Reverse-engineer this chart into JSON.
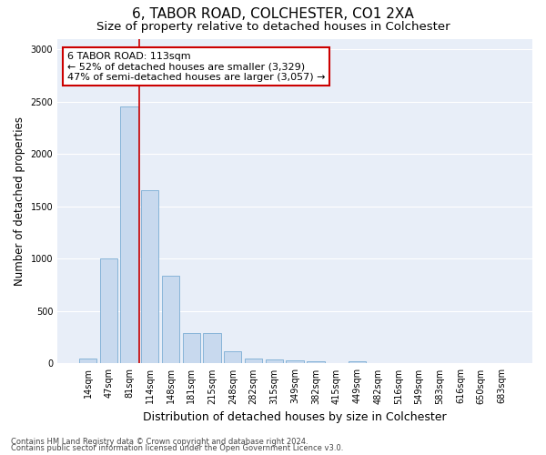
{
  "title": "6, TABOR ROAD, COLCHESTER, CO1 2XA",
  "subtitle": "Size of property relative to detached houses in Colchester",
  "xlabel": "Distribution of detached houses by size in Colchester",
  "ylabel": "Number of detached properties",
  "categories": [
    "14sqm",
    "47sqm",
    "81sqm",
    "114sqm",
    "148sqm",
    "181sqm",
    "215sqm",
    "248sqm",
    "282sqm",
    "315sqm",
    "349sqm",
    "382sqm",
    "415sqm",
    "449sqm",
    "482sqm",
    "516sqm",
    "549sqm",
    "583sqm",
    "616sqm",
    "650sqm",
    "683sqm"
  ],
  "values": [
    50,
    1000,
    2450,
    1650,
    840,
    290,
    290,
    120,
    50,
    40,
    30,
    20,
    0,
    25,
    0,
    0,
    0,
    0,
    0,
    0,
    0
  ],
  "bar_color": "#c8d9ee",
  "bar_edge_color": "#7aadd4",
  "annotation_line1": "6 TABOR ROAD: 113sqm",
  "annotation_line2": "← 52% of detached houses are smaller (3,329)",
  "annotation_line3": "47% of semi-detached houses are larger (3,057) →",
  "annotation_box_color": "#ffffff",
  "annotation_box_edge_color": "#cc0000",
  "vline_color": "#cc0000",
  "ylim": [
    0,
    3100
  ],
  "yticks": [
    0,
    500,
    1000,
    1500,
    2000,
    2500,
    3000
  ],
  "background_color": "#e8eef8",
  "footer_line1": "Contains HM Land Registry data © Crown copyright and database right 2024.",
  "footer_line2": "Contains public sector information licensed under the Open Government Licence v3.0.",
  "title_fontsize": 11,
  "subtitle_fontsize": 9.5,
  "xlabel_fontsize": 9,
  "ylabel_fontsize": 8.5,
  "tick_fontsize": 7,
  "annotation_fontsize": 8,
  "footer_fontsize": 6
}
